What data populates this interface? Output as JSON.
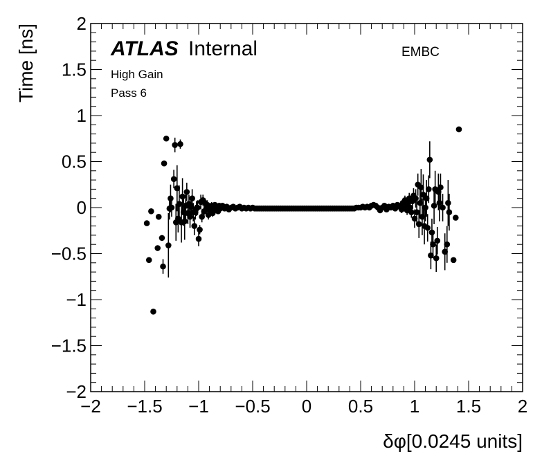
{
  "chart_data": {
    "type": "scatter",
    "xlabel": "δφ[0.0245 units]",
    "ylabel": "Time [ns]",
    "xlim": [
      -2,
      2
    ],
    "ylim": [
      -2,
      2
    ],
    "x_ticks": [
      "−2",
      "−1.5",
      "−1",
      "−0.5",
      "0",
      "0.5",
      "1",
      "1.5",
      "2"
    ],
    "y_ticks": [
      "−2",
      "−1.5",
      "−1",
      "−0.5",
      "0",
      "0.5",
      "1",
      "1.5",
      "2"
    ],
    "grid": false,
    "annotations": {
      "atlas_bold": "ATLAS",
      "atlas_rest": "Internal",
      "line1": "High Gain",
      "line2": "Pass 6",
      "partition": "EMBC"
    },
    "points": [
      {
        "x": -1.48,
        "y": -0.17,
        "err": 0.0
      },
      {
        "x": -1.46,
        "y": -0.57,
        "err": 0.0
      },
      {
        "x": -1.44,
        "y": -0.04,
        "err": 0.0
      },
      {
        "x": -1.42,
        "y": -1.13,
        "err": 0.0
      },
      {
        "x": -1.38,
        "y": -0.44,
        "err": 0.0
      },
      {
        "x": -1.37,
        "y": -0.1,
        "err": 0.0
      },
      {
        "x": -1.34,
        "y": -0.33,
        "err": 0.0
      },
      {
        "x": -1.33,
        "y": -0.64,
        "err": 0.08
      },
      {
        "x": -1.32,
        "y": 0.48,
        "err": 0.0
      },
      {
        "x": -1.3,
        "y": 0.75,
        "err": 0.0
      },
      {
        "x": -1.28,
        "y": -0.41,
        "err": 0.35
      },
      {
        "x": -1.27,
        "y": -0.01,
        "err": 0.12
      },
      {
        "x": -1.26,
        "y": 0.1,
        "err": 0.15
      },
      {
        "x": -1.25,
        "y": 0.0,
        "err": 0.1
      },
      {
        "x": -1.23,
        "y": 0.31,
        "err": 0.1
      },
      {
        "x": -1.22,
        "y": 0.68,
        "err": 0.08
      },
      {
        "x": -1.21,
        "y": -0.16,
        "err": 0.2
      },
      {
        "x": -1.2,
        "y": 0.21,
        "err": 0.25
      },
      {
        "x": -1.19,
        "y": -0.12,
        "err": 0.15
      },
      {
        "x": -1.18,
        "y": 0.04,
        "err": 0.2
      },
      {
        "x": -1.17,
        "y": 0.69,
        "err": 0.05
      },
      {
        "x": -1.16,
        "y": -0.16,
        "err": 0.22
      },
      {
        "x": -1.15,
        "y": 0.12,
        "err": 0.2
      },
      {
        "x": -1.14,
        "y": -0.05,
        "err": 0.15
      },
      {
        "x": -1.13,
        "y": -0.15,
        "err": 0.2
      },
      {
        "x": -1.12,
        "y": 0.02,
        "err": 0.15
      },
      {
        "x": -1.11,
        "y": 0.17,
        "err": 0.1
      },
      {
        "x": -1.1,
        "y": -0.06,
        "err": 0.12
      },
      {
        "x": -1.09,
        "y": 0.04,
        "err": 0.1
      },
      {
        "x": -1.08,
        "y": -0.1,
        "err": 0.12
      },
      {
        "x": -1.07,
        "y": 0.01,
        "err": 0.1
      },
      {
        "x": -1.06,
        "y": 0.1,
        "err": 0.1
      },
      {
        "x": -1.05,
        "y": -0.05,
        "err": 0.1
      },
      {
        "x": -1.04,
        "y": -0.2,
        "err": 0.1
      },
      {
        "x": -1.03,
        "y": -0.05,
        "err": 0.08
      },
      {
        "x": -1.02,
        "y": -0.01,
        "err": 0.08
      },
      {
        "x": -1.01,
        "y": 0.0,
        "err": 0.08
      },
      {
        "x": -1.0,
        "y": -0.34,
        "err": 0.08
      },
      {
        "x": -0.99,
        "y": -0.24,
        "err": 0.05
      },
      {
        "x": -0.98,
        "y": 0.06,
        "err": 0.08
      },
      {
        "x": -0.97,
        "y": -0.1,
        "err": 0.06
      },
      {
        "x": -0.96,
        "y": 0.08,
        "err": 0.06
      },
      {
        "x": -0.95,
        "y": -0.04,
        "err": 0.06
      },
      {
        "x": -0.94,
        "y": 0.05,
        "err": 0.05
      },
      {
        "x": -0.93,
        "y": -0.02,
        "err": 0.05
      },
      {
        "x": -0.92,
        "y": 0.03,
        "err": 0.05
      },
      {
        "x": -0.91,
        "y": -0.08,
        "err": 0.05
      },
      {
        "x": -0.9,
        "y": 0.0,
        "err": 0.04
      },
      {
        "x": -0.89,
        "y": -0.03,
        "err": 0.04
      },
      {
        "x": -0.88,
        "y": 0.02,
        "err": 0.04
      },
      {
        "x": -0.87,
        "y": -0.06,
        "err": 0.04
      },
      {
        "x": -0.86,
        "y": -0.01,
        "err": 0.03
      },
      {
        "x": -0.85,
        "y": 0.03,
        "err": 0.03
      },
      {
        "x": -0.84,
        "y": -0.02,
        "err": 0.03
      },
      {
        "x": -0.83,
        "y": 0.01,
        "err": 0.03
      },
      {
        "x": -0.82,
        "y": -0.04,
        "err": 0.03
      },
      {
        "x": -0.81,
        "y": 0.02,
        "err": 0.02
      },
      {
        "x": -0.8,
        "y": -0.01,
        "err": 0.02
      },
      {
        "x": -0.78,
        "y": 0.02,
        "err": 0.02
      },
      {
        "x": -0.76,
        "y": -0.01,
        "err": 0.02
      },
      {
        "x": -0.74,
        "y": 0.01,
        "err": 0.02
      },
      {
        "x": -0.72,
        "y": -0.02,
        "err": 0.02
      },
      {
        "x": -0.7,
        "y": 0.0,
        "err": 0.01
      },
      {
        "x": -0.68,
        "y": 0.01,
        "err": 0.01
      },
      {
        "x": -0.66,
        "y": -0.01,
        "err": 0.01
      },
      {
        "x": -0.64,
        "y": 0.0,
        "err": 0.01
      },
      {
        "x": -0.62,
        "y": 0.01,
        "err": 0.01
      },
      {
        "x": -0.6,
        "y": -0.01,
        "err": 0.01
      },
      {
        "x": -0.58,
        "y": 0.0,
        "err": 0.01
      },
      {
        "x": -0.56,
        "y": -0.01,
        "err": 0.01
      },
      {
        "x": -0.54,
        "y": 0.0,
        "err": 0.01
      },
      {
        "x": -0.52,
        "y": -0.01,
        "err": 0.01
      },
      {
        "x": -0.5,
        "y": 0.0,
        "err": 0.01
      },
      {
        "x": -0.48,
        "y": -0.01,
        "err": 0.0
      },
      {
        "x": -0.46,
        "y": -0.01,
        "err": 0.0
      },
      {
        "x": -0.44,
        "y": -0.01,
        "err": 0.0
      },
      {
        "x": -0.42,
        "y": -0.01,
        "err": 0.0
      },
      {
        "x": -0.4,
        "y": -0.01,
        "err": 0.0
      },
      {
        "x": -0.38,
        "y": -0.01,
        "err": 0.0
      },
      {
        "x": -0.36,
        "y": -0.01,
        "err": 0.0
      },
      {
        "x": -0.34,
        "y": -0.01,
        "err": 0.0
      },
      {
        "x": -0.32,
        "y": -0.01,
        "err": 0.0
      },
      {
        "x": -0.3,
        "y": -0.01,
        "err": 0.0
      },
      {
        "x": -0.28,
        "y": -0.01,
        "err": 0.0
      },
      {
        "x": -0.26,
        "y": -0.01,
        "err": 0.0
      },
      {
        "x": -0.24,
        "y": -0.01,
        "err": 0.0
      },
      {
        "x": -0.22,
        "y": -0.01,
        "err": 0.0
      },
      {
        "x": -0.2,
        "y": -0.01,
        "err": 0.0
      },
      {
        "x": -0.18,
        "y": -0.01,
        "err": 0.0
      },
      {
        "x": -0.16,
        "y": -0.01,
        "err": 0.0
      },
      {
        "x": -0.14,
        "y": -0.01,
        "err": 0.0
      },
      {
        "x": -0.12,
        "y": -0.01,
        "err": 0.0
      },
      {
        "x": -0.1,
        "y": -0.01,
        "err": 0.0
      },
      {
        "x": -0.08,
        "y": -0.01,
        "err": 0.0
      },
      {
        "x": -0.06,
        "y": -0.01,
        "err": 0.0
      },
      {
        "x": -0.04,
        "y": -0.01,
        "err": 0.0
      },
      {
        "x": -0.02,
        "y": -0.01,
        "err": 0.0
      },
      {
        "x": 0.0,
        "y": -0.01,
        "err": 0.0
      },
      {
        "x": 0.02,
        "y": -0.01,
        "err": 0.0
      },
      {
        "x": 0.04,
        "y": -0.01,
        "err": 0.0
      },
      {
        "x": 0.06,
        "y": -0.01,
        "err": 0.0
      },
      {
        "x": 0.08,
        "y": -0.01,
        "err": 0.0
      },
      {
        "x": 0.1,
        "y": -0.01,
        "err": 0.0
      },
      {
        "x": 0.12,
        "y": -0.01,
        "err": 0.0
      },
      {
        "x": 0.14,
        "y": -0.01,
        "err": 0.0
      },
      {
        "x": 0.16,
        "y": -0.01,
        "err": 0.0
      },
      {
        "x": 0.18,
        "y": -0.01,
        "err": 0.0
      },
      {
        "x": 0.2,
        "y": -0.01,
        "err": 0.0
      },
      {
        "x": 0.22,
        "y": -0.01,
        "err": 0.0
      },
      {
        "x": 0.24,
        "y": -0.01,
        "err": 0.0
      },
      {
        "x": 0.26,
        "y": -0.01,
        "err": 0.0
      },
      {
        "x": 0.28,
        "y": -0.01,
        "err": 0.0
      },
      {
        "x": 0.3,
        "y": -0.01,
        "err": 0.0
      },
      {
        "x": 0.32,
        "y": -0.01,
        "err": 0.0
      },
      {
        "x": 0.34,
        "y": -0.01,
        "err": 0.0
      },
      {
        "x": 0.36,
        "y": -0.01,
        "err": 0.0
      },
      {
        "x": 0.38,
        "y": -0.01,
        "err": 0.0
      },
      {
        "x": 0.4,
        "y": -0.01,
        "err": 0.0
      },
      {
        "x": 0.42,
        "y": -0.01,
        "err": 0.0
      },
      {
        "x": 0.44,
        "y": -0.01,
        "err": 0.0
      },
      {
        "x": 0.46,
        "y": 0.0,
        "err": 0.0
      },
      {
        "x": 0.48,
        "y": 0.0,
        "err": 0.01
      },
      {
        "x": 0.5,
        "y": 0.0,
        "err": 0.01
      },
      {
        "x": 0.52,
        "y": 0.01,
        "err": 0.01
      },
      {
        "x": 0.54,
        "y": 0.0,
        "err": 0.01
      },
      {
        "x": 0.56,
        "y": 0.01,
        "err": 0.01
      },
      {
        "x": 0.58,
        "y": 0.0,
        "err": 0.01
      },
      {
        "x": 0.6,
        "y": 0.02,
        "err": 0.01
      },
      {
        "x": 0.62,
        "y": 0.03,
        "err": 0.01
      },
      {
        "x": 0.64,
        "y": 0.02,
        "err": 0.01
      },
      {
        "x": 0.66,
        "y": 0.0,
        "err": 0.01
      },
      {
        "x": 0.68,
        "y": -0.03,
        "err": 0.02
      },
      {
        "x": 0.7,
        "y": 0.0,
        "err": 0.02
      },
      {
        "x": 0.72,
        "y": 0.02,
        "err": 0.02
      },
      {
        "x": 0.74,
        "y": -0.02,
        "err": 0.02
      },
      {
        "x": 0.76,
        "y": 0.01,
        "err": 0.02
      },
      {
        "x": 0.78,
        "y": 0.0,
        "err": 0.02
      },
      {
        "x": 0.8,
        "y": 0.02,
        "err": 0.02
      },
      {
        "x": 0.82,
        "y": -0.01,
        "err": 0.03
      },
      {
        "x": 0.84,
        "y": 0.03,
        "err": 0.03
      },
      {
        "x": 0.86,
        "y": 0.01,
        "err": 0.04
      },
      {
        "x": 0.88,
        "y": -0.02,
        "err": 0.04
      },
      {
        "x": 0.89,
        "y": 0.05,
        "err": 0.04
      },
      {
        "x": 0.9,
        "y": 0.01,
        "err": 0.04
      },
      {
        "x": 0.91,
        "y": 0.08,
        "err": 0.05
      },
      {
        "x": 0.92,
        "y": 0.03,
        "err": 0.05
      },
      {
        "x": 0.93,
        "y": -0.03,
        "err": 0.05
      },
      {
        "x": 0.94,
        "y": 0.05,
        "err": 0.05
      },
      {
        "x": 0.95,
        "y": 0.1,
        "err": 0.06
      },
      {
        "x": 0.96,
        "y": 0.0,
        "err": 0.06
      },
      {
        "x": 0.97,
        "y": -0.05,
        "err": 0.06
      },
      {
        "x": 0.98,
        "y": 0.07,
        "err": 0.07
      },
      {
        "x": 0.99,
        "y": 0.13,
        "err": 0.08
      },
      {
        "x": 1.0,
        "y": -0.12,
        "err": 0.1
      },
      {
        "x": 1.01,
        "y": 0.1,
        "err": 0.1
      },
      {
        "x": 1.02,
        "y": -0.05,
        "err": 0.12
      },
      {
        "x": 1.03,
        "y": 0.25,
        "err": 0.12
      },
      {
        "x": 1.04,
        "y": -0.18,
        "err": 0.15
      },
      {
        "x": 1.05,
        "y": 0.05,
        "err": 0.15
      },
      {
        "x": 1.06,
        "y": 0.22,
        "err": 0.2
      },
      {
        "x": 1.07,
        "y": -0.1,
        "err": 0.2
      },
      {
        "x": 1.08,
        "y": 0.14,
        "err": 0.22
      },
      {
        "x": 1.09,
        "y": -0.2,
        "err": 0.2
      },
      {
        "x": 1.1,
        "y": 0.0,
        "err": 0.15
      },
      {
        "x": 1.11,
        "y": 0.1,
        "err": 0.2
      },
      {
        "x": 1.12,
        "y": -0.22,
        "err": 0.15
      },
      {
        "x": 1.13,
        "y": 0.2,
        "err": 0.15
      },
      {
        "x": 1.14,
        "y": 0.52,
        "err": 0.2
      },
      {
        "x": 1.15,
        "y": -0.52,
        "err": 0.15
      },
      {
        "x": 1.16,
        "y": -0.27,
        "err": 0.15
      },
      {
        "x": 1.17,
        "y": -0.4,
        "err": 0.15
      },
      {
        "x": 1.18,
        "y": 0.02,
        "err": 0.2
      },
      {
        "x": 1.19,
        "y": 0.2,
        "err": 0.2
      },
      {
        "x": 1.2,
        "y": -0.55,
        "err": 0.15
      },
      {
        "x": 1.21,
        "y": -0.36,
        "err": 0.15
      },
      {
        "x": 1.22,
        "y": 0.17,
        "err": 0.2
      },
      {
        "x": 1.23,
        "y": 0.05,
        "err": 0.2
      },
      {
        "x": 1.24,
        "y": 0.22,
        "err": 0.15
      },
      {
        "x": 1.26,
        "y": 0.0,
        "err": 0.15
      },
      {
        "x": 1.28,
        "y": -0.48,
        "err": 0.2
      },
      {
        "x": 1.3,
        "y": -0.4,
        "err": 0.2
      },
      {
        "x": 1.31,
        "y": 0.05,
        "err": 0.25
      },
      {
        "x": 1.32,
        "y": -0.05,
        "err": 0.2
      },
      {
        "x": 1.36,
        "y": -0.57,
        "err": 0.0
      },
      {
        "x": 1.38,
        "y": -0.11,
        "err": 0.0
      },
      {
        "x": 1.41,
        "y": 0.85,
        "err": 0.0
      }
    ]
  }
}
